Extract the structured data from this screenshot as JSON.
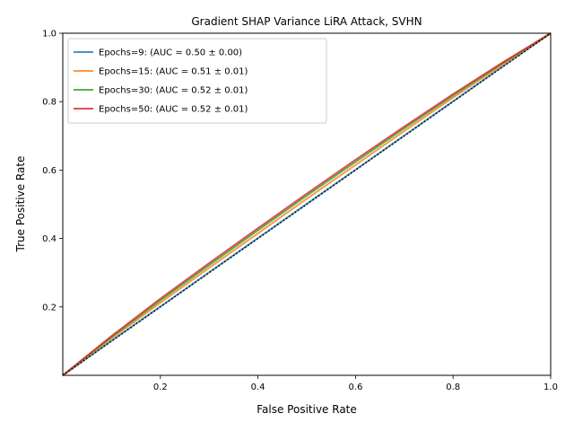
{
  "chart_data": {
    "type": "line",
    "title": "Gradient SHAP Variance LiRA Attack, SVHN",
    "xlabel": "False Positive Rate",
    "ylabel": "True Positive Rate",
    "xlim": [
      0,
      1
    ],
    "ylim": [
      0,
      1
    ],
    "x_ticks": [
      "0.2",
      "0.4",
      "0.6",
      "0.8",
      "1.0"
    ],
    "y_ticks": [
      "0.2",
      "0.4",
      "0.6",
      "0.8",
      "1.0"
    ],
    "grid": false,
    "legend_position": "top-left",
    "reference_line": {
      "x": [
        0,
        1
      ],
      "y": [
        0,
        1
      ],
      "style": "dotted"
    },
    "series": [
      {
        "name": "Epochs=9: (AUC = 0.50 ± 0.00)",
        "color": "#1f77b4",
        "x": [
          0,
          0.1,
          0.2,
          0.3,
          0.4,
          0.5,
          0.6,
          0.7,
          0.8,
          0.9,
          1.0
        ],
        "y": [
          0,
          0.101,
          0.201,
          0.301,
          0.401,
          0.501,
          0.601,
          0.701,
          0.801,
          0.901,
          1.0
        ]
      },
      {
        "name": "Epochs=15: (AUC = 0.51 ± 0.01)",
        "color": "#ff7f0e",
        "x": [
          0,
          0.1,
          0.2,
          0.3,
          0.4,
          0.5,
          0.6,
          0.7,
          0.8,
          0.9,
          1.0
        ],
        "y": [
          0,
          0.108,
          0.212,
          0.314,
          0.415,
          0.516,
          0.615,
          0.714,
          0.812,
          0.907,
          1.0
        ]
      },
      {
        "name": "Epochs=30: (AUC = 0.52 ± 0.01)",
        "color": "#2ca02c",
        "x": [
          0,
          0.1,
          0.2,
          0.3,
          0.4,
          0.5,
          0.6,
          0.7,
          0.8,
          0.9,
          1.0
        ],
        "y": [
          0,
          0.112,
          0.219,
          0.322,
          0.424,
          0.525,
          0.624,
          0.722,
          0.818,
          0.911,
          1.0
        ]
      },
      {
        "name": "Epochs=50: (AUC = 0.52 ± 0.01)",
        "color": "#d62728",
        "x": [
          0,
          0.1,
          0.2,
          0.3,
          0.4,
          0.5,
          0.6,
          0.7,
          0.8,
          0.9,
          1.0
        ],
        "y": [
          0,
          0.115,
          0.224,
          0.328,
          0.43,
          0.531,
          0.63,
          0.727,
          0.822,
          0.913,
          1.0
        ]
      }
    ]
  }
}
